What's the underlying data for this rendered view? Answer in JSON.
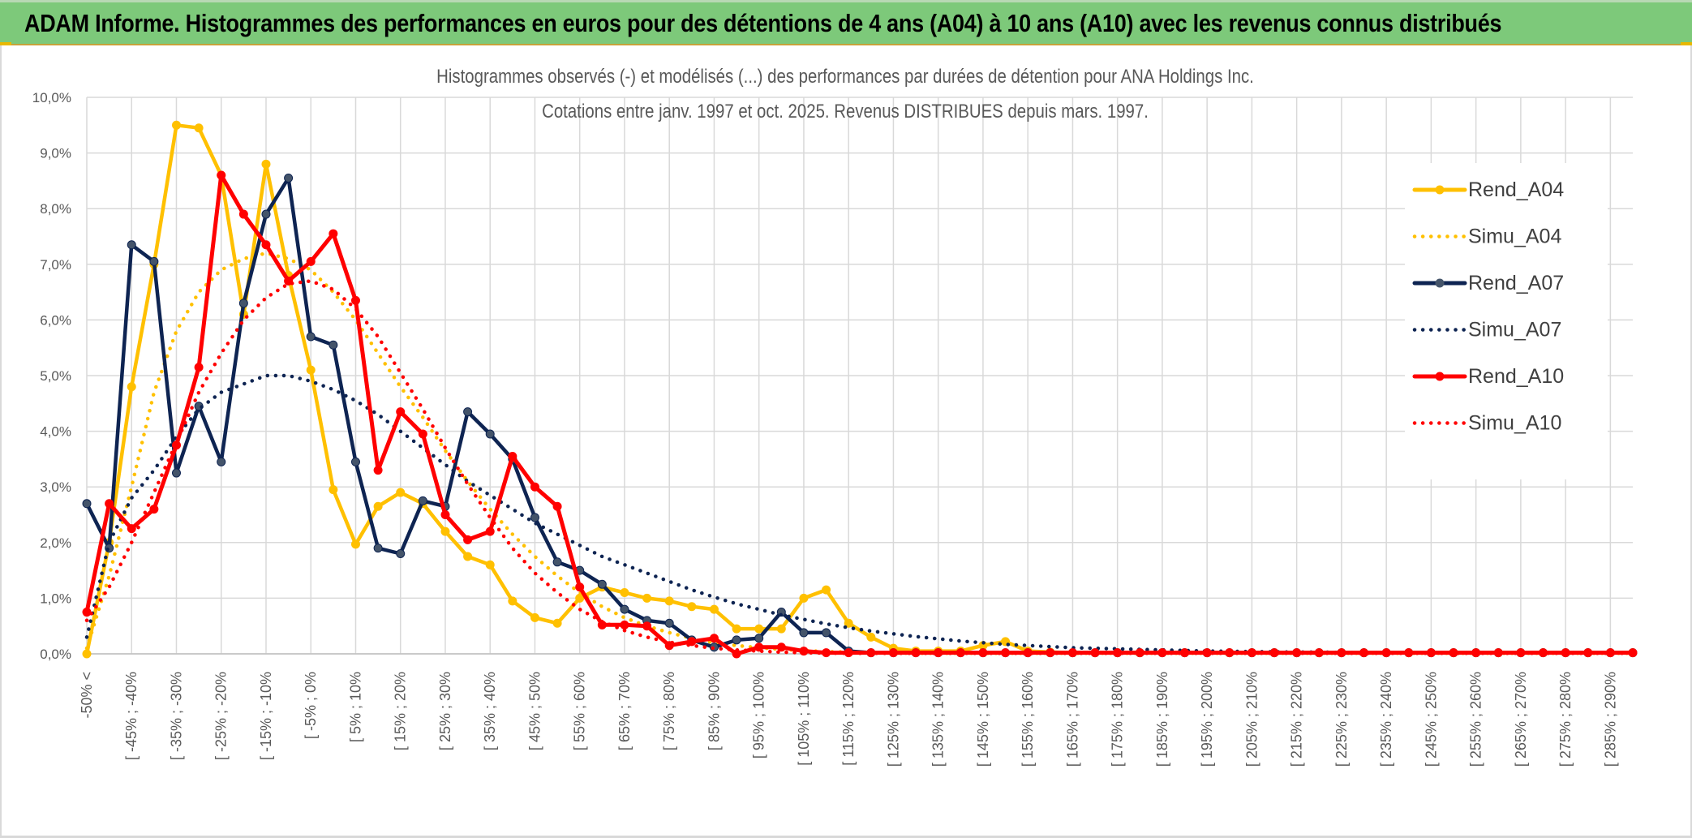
{
  "header": {
    "title": "ADAM Informe. Histogrammes des performances en euros pour des détentions de 4 ans (A04) à 10 ans (A10) avec les revenus connus distribués"
  },
  "colors": {
    "header_bg": "#7dc97a",
    "A04": "#ffc000",
    "A07": "#0e2452",
    "A07_marker": "#44546a",
    "A10": "#ff0000",
    "grid": "#d9d9d9"
  },
  "chart_data": {
    "type": "line",
    "title": "Histogrammes observés (-) et modélisés (...) des performances par durées de détention pour ANA Holdings Inc.",
    "subtitle": "Cotations entre janv. 1997 et oct. 2025. Revenus DISTRIBUES depuis mars. 1997.",
    "xlabel": "",
    "ylabel": "",
    "ylim": [
      0,
      10
    ],
    "y_unit": "%",
    "y_ticks": [
      "0,0%",
      "1,0%",
      "2,0%",
      "3,0%",
      "4,0%",
      "5,0%",
      "6,0%",
      "7,0%",
      "8,0%",
      "9,0%",
      "10,0%"
    ],
    "grid": true,
    "legend_position": "right",
    "x_labels": [
      "-50% <",
      "[ -45% ; -40%",
      "[ -35% ; -30%",
      "[ -25% ; -20%",
      "[ -15% ; -10%",
      "[ -5% ; 0%",
      "[ 5% ; 10%",
      "[ 15% ; 20%",
      "[ 25% ; 30%",
      "[ 35% ; 40%",
      "[ 45% ; 50%",
      "[ 55% ; 60%",
      "[ 65% ; 70%",
      "[ 75% ; 80%",
      "[ 85% ; 90%",
      "[ 95% ; 100%",
      "[ 105% ; 110%",
      "[ 115% ; 120%",
      "[ 125% ; 130%",
      "[ 135% ; 140%",
      "[ 145% ; 150%",
      "[ 155% ; 160%",
      "[ 165% ; 170%",
      "[ 175% ; 180%",
      "[ 185% ; 190%",
      "[ 195% ; 200%",
      "[ 205% ; 210%",
      "[ 215% ; 220%",
      "[ 225% ; 230%",
      "[ 235% ; 240%",
      "[ 245% ; 250%",
      "[ 255% ; 260%",
      "[ 265% ; 270%",
      "[ 275% ; 280%",
      "[ 285% ; 290%"
    ],
    "series": [
      {
        "name": "Rend_A04",
        "style": "solid",
        "color": "#ffc000",
        "values": [
          0.0,
          2.0,
          4.8,
          7.0,
          9.5,
          9.45,
          8.6,
          6.1,
          8.8,
          6.8,
          5.1,
          2.95,
          1.97,
          2.65,
          2.9,
          2.7,
          2.2,
          1.75,
          1.6,
          0.95,
          0.65,
          0.55,
          1.0,
          1.2,
          1.1,
          1.0,
          0.95,
          0.85,
          0.8,
          0.45,
          0.45,
          0.45,
          1.0,
          1.15,
          0.55,
          0.3,
          0.1,
          0.05,
          0.05,
          0.05,
          0.15,
          0.22,
          0.05,
          0.03,
          0.02,
          0.02,
          0.02,
          0.02,
          0.02,
          0.02,
          0.02,
          0.02,
          0.02,
          0.02,
          0.02,
          0.02,
          0.02,
          0.02,
          0.02,
          0.02,
          0.02,
          0.02,
          0.02,
          0.02,
          0.02,
          0.02,
          0.02,
          0.02,
          0.02,
          0.02
        ]
      },
      {
        "name": "Simu_A04",
        "style": "dotted",
        "color": "#ffc000",
        "values": [
          0.1,
          1.4,
          3.0,
          4.7,
          5.8,
          6.5,
          6.9,
          7.1,
          7.2,
          7.1,
          6.9,
          6.5,
          6.0,
          5.4,
          4.8,
          4.25,
          3.65,
          3.1,
          2.6,
          2.15,
          1.75,
          1.4,
          1.1,
          0.85,
          0.65,
          0.5,
          0.38,
          0.28,
          0.2,
          0.15,
          0.11,
          0.08,
          0.06,
          0.04,
          0.03,
          0.02,
          0.015,
          0.01,
          0.01,
          0.01,
          0.01,
          0.01,
          0.01,
          0.01,
          0.01,
          0.01,
          0.01,
          0.01,
          0.01,
          0.01,
          0.01,
          0.01,
          0.01,
          0.01,
          0.01,
          0.01,
          0.01,
          0.01,
          0.01,
          0.01,
          0.01,
          0.01,
          0.01,
          0.01,
          0.01,
          0.01,
          0.01,
          0.01,
          0.01,
          0.01
        ]
      },
      {
        "name": "Rend_A07",
        "style": "solid",
        "color": "#0e2452",
        "values": [
          2.7,
          1.9,
          7.35,
          7.05,
          3.25,
          4.45,
          3.45,
          6.3,
          7.9,
          8.55,
          5.7,
          5.55,
          3.45,
          1.9,
          1.8,
          2.75,
          2.65,
          4.35,
          3.95,
          3.5,
          2.45,
          1.65,
          1.5,
          1.25,
          0.8,
          0.6,
          0.55,
          0.25,
          0.12,
          0.25,
          0.28,
          0.75,
          0.38,
          0.38,
          0.05,
          0.02,
          0.02,
          0.02,
          0.02,
          0.02,
          0.02,
          0.02,
          0.02,
          0.02,
          0.02,
          0.02,
          0.02,
          0.02,
          0.02,
          0.02,
          0.02,
          0.02,
          0.02,
          0.02,
          0.02,
          0.02,
          0.02,
          0.02,
          0.02,
          0.02,
          0.02,
          0.02,
          0.02,
          0.02,
          0.02,
          0.02,
          0.02,
          0.02,
          0.02,
          0.02
        ]
      },
      {
        "name": "Simu_A07",
        "style": "dotted",
        "color": "#0e2452",
        "values": [
          0.3,
          2.0,
          2.8,
          3.3,
          3.9,
          4.4,
          4.7,
          4.85,
          5.0,
          5.0,
          4.9,
          4.75,
          4.55,
          4.3,
          4.0,
          3.7,
          3.4,
          3.1,
          2.85,
          2.6,
          2.35,
          2.15,
          1.95,
          1.75,
          1.6,
          1.45,
          1.3,
          1.15,
          1.02,
          0.9,
          0.8,
          0.7,
          0.62,
          0.54,
          0.47,
          0.41,
          0.36,
          0.31,
          0.27,
          0.23,
          0.2,
          0.17,
          0.15,
          0.13,
          0.11,
          0.1,
          0.09,
          0.08,
          0.07,
          0.06,
          0.05,
          0.045,
          0.04,
          0.035,
          0.03,
          0.03,
          0.025,
          0.02,
          0.02,
          0.02,
          0.02,
          0.02,
          0.02,
          0.02,
          0.02,
          0.02,
          0.02,
          0.02,
          0.02,
          0.02
        ]
      },
      {
        "name": "Rend_A10",
        "style": "solid",
        "color": "#ff0000",
        "values": [
          0.75,
          2.7,
          2.25,
          2.6,
          3.75,
          5.15,
          8.6,
          7.9,
          7.35,
          6.7,
          7.05,
          7.55,
          6.35,
          3.3,
          4.35,
          3.95,
          2.5,
          2.05,
          2.2,
          3.55,
          3.0,
          2.65,
          1.2,
          0.52,
          0.52,
          0.5,
          0.15,
          0.22,
          0.28,
          0.0,
          0.12,
          0.12,
          0.05,
          0.02,
          0.02,
          0.02,
          0.02,
          0.02,
          0.02,
          0.02,
          0.02,
          0.02,
          0.02,
          0.02,
          0.02,
          0.02,
          0.02,
          0.02,
          0.02,
          0.02,
          0.02,
          0.02,
          0.02,
          0.02,
          0.02,
          0.02,
          0.02,
          0.02,
          0.02,
          0.02,
          0.02,
          0.02,
          0.02,
          0.02,
          0.02,
          0.02,
          0.02,
          0.02,
          0.02,
          0.02
        ]
      },
      {
        "name": "Simu_A10",
        "style": "dotted",
        "color": "#ff0000",
        "values": [
          0.6,
          1.2,
          2.0,
          2.9,
          3.8,
          4.7,
          5.4,
          6.0,
          6.4,
          6.65,
          6.7,
          6.55,
          6.2,
          5.7,
          5.05,
          4.4,
          3.7,
          3.05,
          2.45,
          1.9,
          1.45,
          1.1,
          0.8,
          0.58,
          0.42,
          0.3,
          0.21,
          0.15,
          0.1,
          0.07,
          0.05,
          0.03,
          0.02,
          0.015,
          0.01,
          0.01,
          0.01,
          0.01,
          0.01,
          0.01,
          0.01,
          0.01,
          0.01,
          0.01,
          0.01,
          0.01,
          0.01,
          0.01,
          0.01,
          0.01,
          0.01,
          0.01,
          0.01,
          0.01,
          0.01,
          0.01,
          0.01,
          0.01,
          0.01,
          0.01,
          0.01,
          0.01,
          0.01,
          0.01,
          0.01,
          0.01,
          0.01,
          0.01,
          0.01,
          0.01
        ]
      }
    ]
  }
}
